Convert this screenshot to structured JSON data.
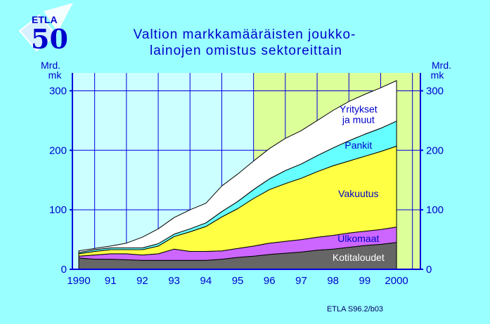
{
  "logo": {
    "text": "ETLA",
    "number": "50"
  },
  "chart_data": {
    "type": "area",
    "stacked": true,
    "title": [
      "Valtion markkamääräisten joukko-",
      "lainojen omistus sektoreittain"
    ],
    "ylabel": [
      "Mrd.",
      "mk"
    ],
    "ylim": [
      0,
      330
    ],
    "yticks": [
      0,
      100,
      200,
      300
    ],
    "x": [
      1990,
      1990.5,
      1991,
      1991.5,
      1992,
      1992.5,
      1993,
      1993.5,
      1994,
      1994.5,
      1995,
      1995.5,
      1996,
      1996.5,
      1997,
      1997.5,
      1998,
      1998.5,
      1999,
      1999.5,
      2000
    ],
    "xtick_labels": [
      {
        "x": 1990,
        "label": "1990"
      },
      {
        "x": 1991,
        "label": "91"
      },
      {
        "x": 1992,
        "label": "92"
      },
      {
        "x": 1993,
        "label": "93"
      },
      {
        "x": 1994,
        "label": "94"
      },
      {
        "x": 1995,
        "label": "95"
      },
      {
        "x": 1996,
        "label": "96"
      },
      {
        "x": 1997,
        "label": "97"
      },
      {
        "x": 1998,
        "label": "98"
      },
      {
        "x": 1999,
        "label": "99"
      },
      {
        "x": 2000,
        "label": "2000"
      }
    ],
    "forecast_from": 1995.5,
    "grid": true,
    "series": [
      {
        "name": "Kotitaloudet",
        "color": "#666666",
        "values": [
          19,
          17,
          17,
          16,
          15,
          15,
          15,
          15,
          15,
          17,
          20,
          22,
          25,
          27,
          29,
          32,
          34,
          37,
          40,
          42,
          45
        ]
      },
      {
        "name": "Ulkomaat",
        "color": "#cc66ff",
        "values": [
          3,
          7,
          9,
          10,
          9,
          11,
          19,
          15,
          15,
          14,
          15,
          17,
          19,
          20,
          21,
          22,
          23,
          24,
          24,
          25,
          26
        ]
      },
      {
        "name": "Vakuutus",
        "color": "#ffff44",
        "values": [
          4,
          6,
          7,
          7,
          9,
          13,
          21,
          33,
          42,
          57,
          67,
          80,
          90,
          97,
          103,
          110,
          117,
          121,
          126,
          131,
          136
        ]
      },
      {
        "name": "Pankit",
        "color": "#66ffff",
        "values": [
          2,
          3,
          3,
          3,
          3,
          4,
          4,
          5,
          6,
          9,
          12,
          15,
          18,
          22,
          24,
          27,
          30,
          34,
          37,
          39,
          42
        ]
      },
      {
        "name": "Yritykset ja muut",
        "color": "#ffffff",
        "values": [
          3,
          2,
          3,
          8,
          18,
          25,
          28,
          32,
          33,
          43,
          46,
          48,
          51,
          54,
          56,
          59,
          63,
          66,
          67,
          68,
          68
        ]
      }
    ],
    "series_labels": [
      {
        "series": 4,
        "lines": [
          "Yritykset",
          "ja muut"
        ]
      },
      {
        "series": 3,
        "lines": [
          "Pankit"
        ]
      },
      {
        "series": 2,
        "lines": [
          "Vakuutus"
        ]
      },
      {
        "series": 1,
        "lines": [
          "Ulkomaat"
        ]
      },
      {
        "series": 0,
        "lines": [
          "Kotitaloudet"
        ]
      }
    ],
    "source_note": "ETLA S96.2/b03",
    "colors": {
      "background": "#99ffff",
      "plot_history": "#ccffff",
      "plot_forecast": "#ddff99",
      "grid": "#0000dd",
      "text": "#0000cc"
    }
  }
}
